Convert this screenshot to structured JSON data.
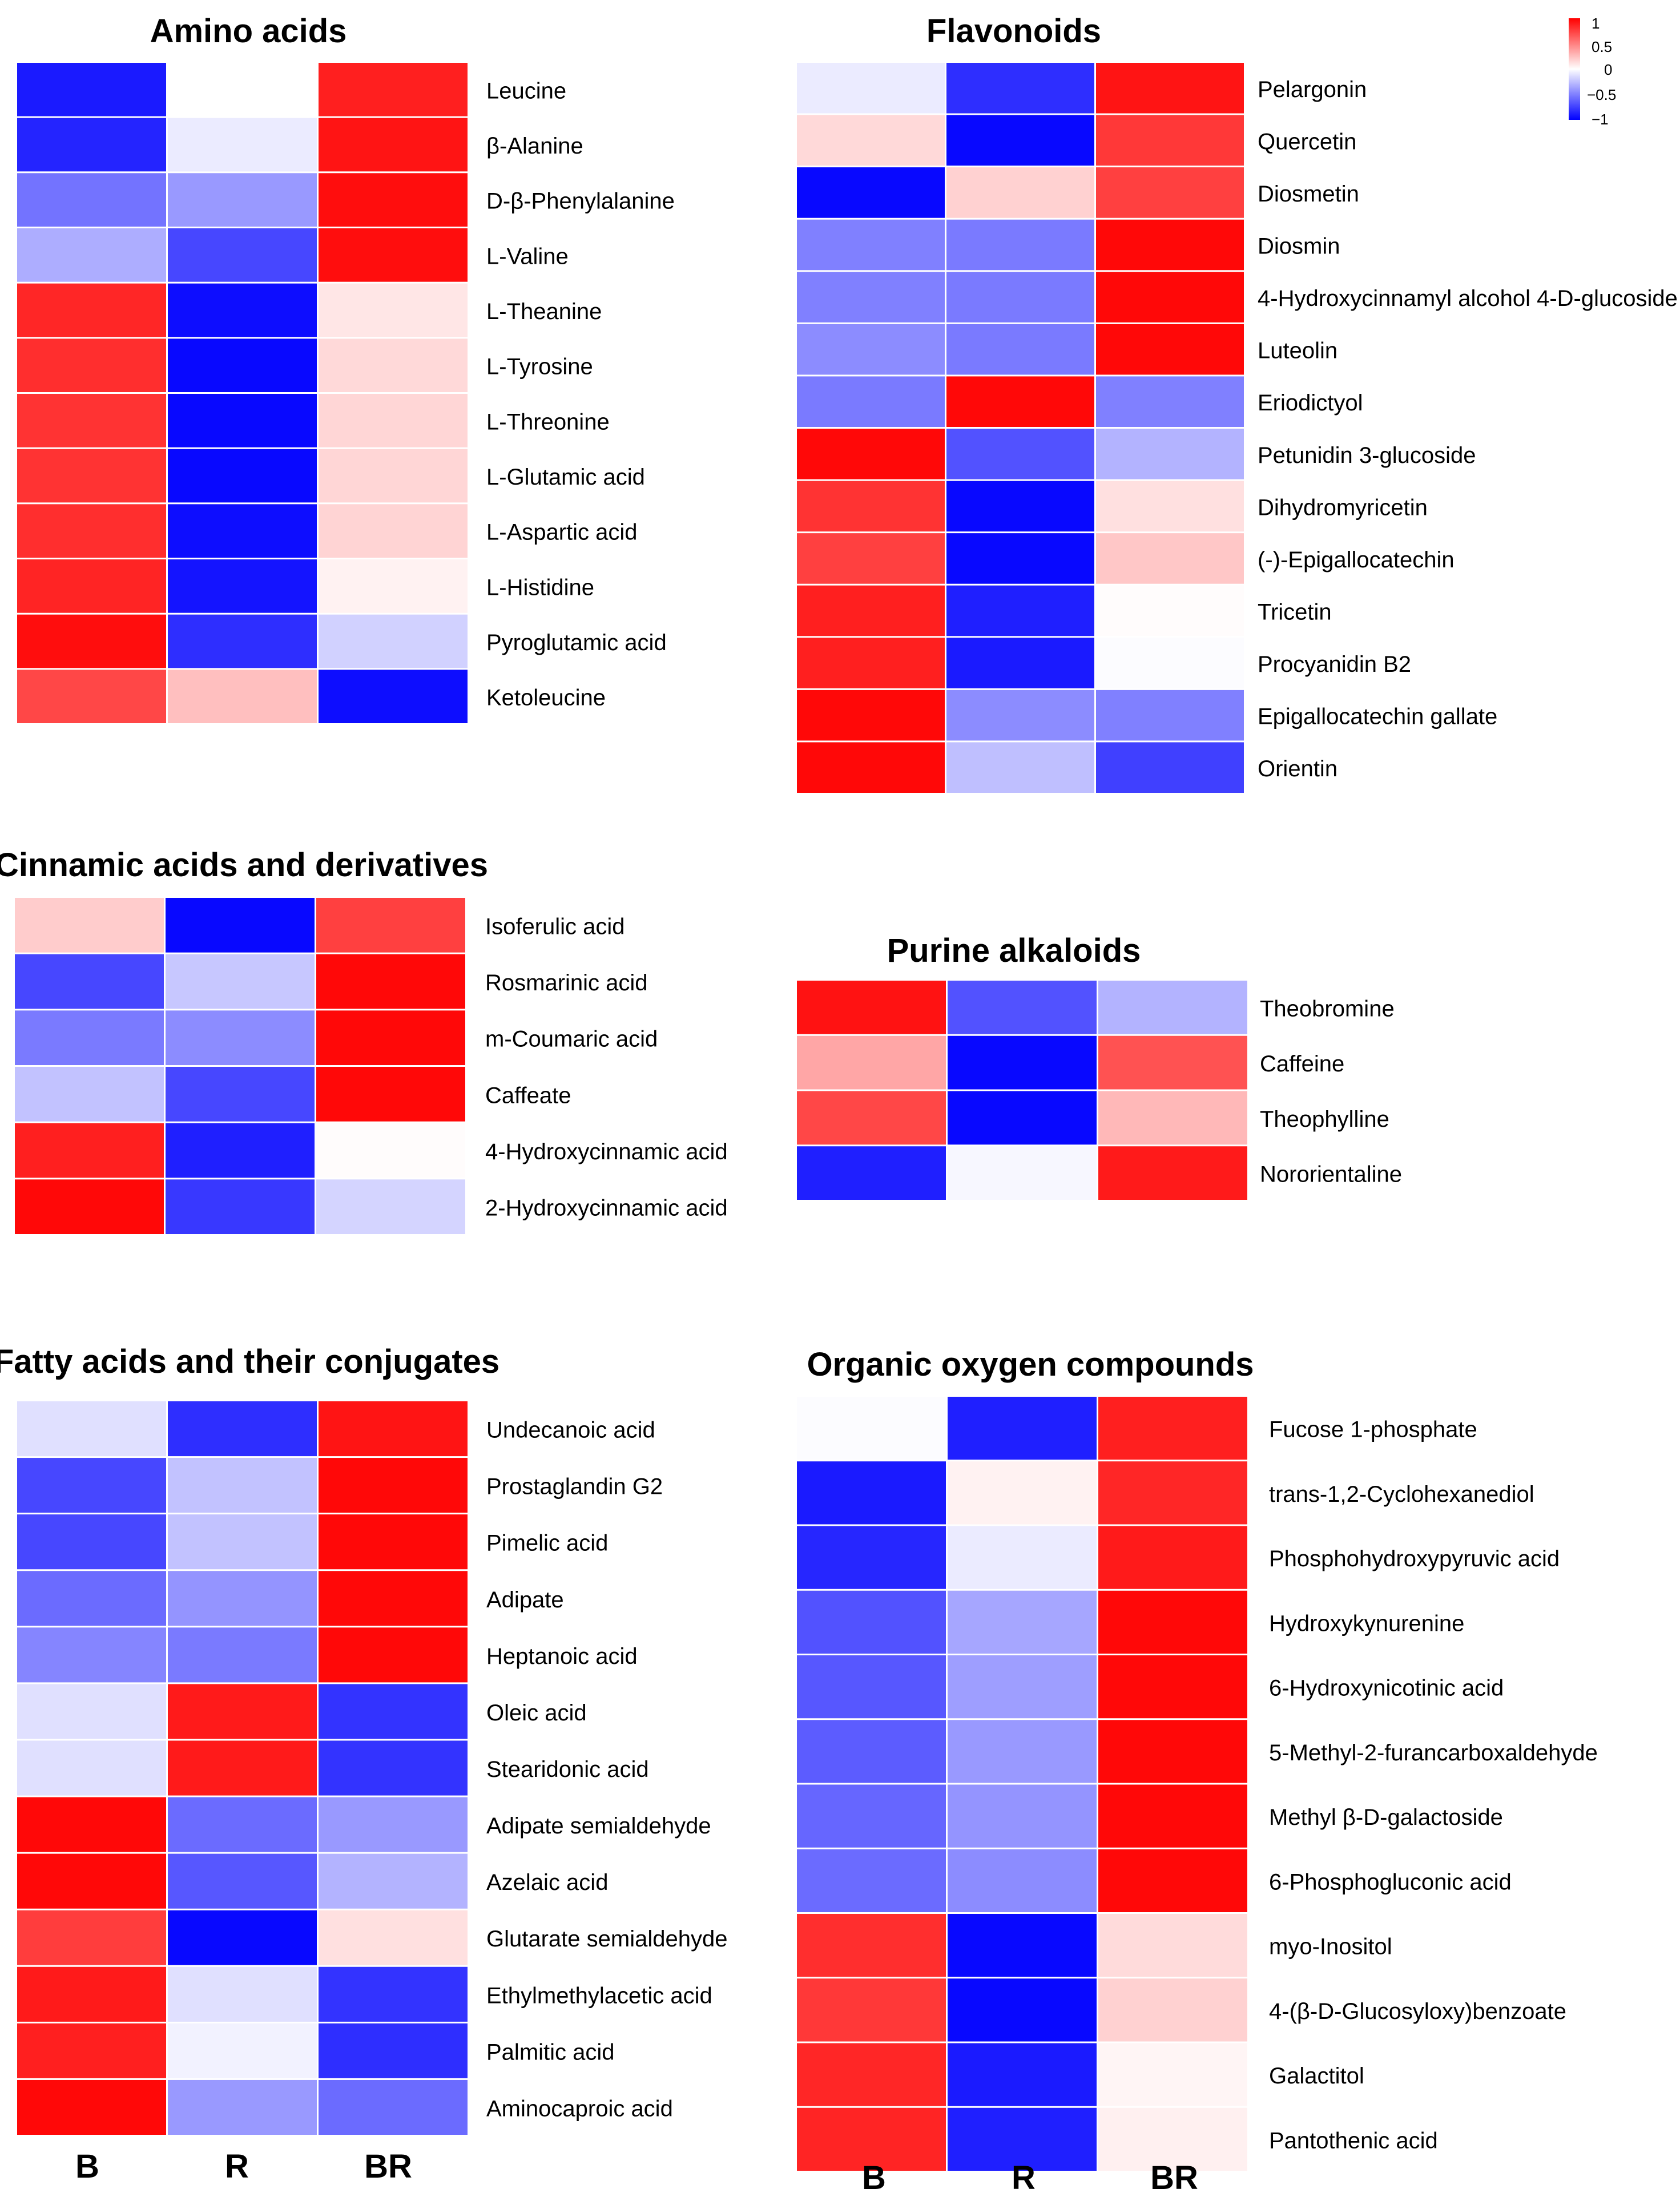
{
  "chart_data": {
    "type": "heatmap",
    "colors": {
      "low": "#0000ff",
      "mid": "#ffffff",
      "high": "#ff0000"
    },
    "legend": {
      "placement": "top-right",
      "range": [
        -1,
        1
      ],
      "ticks": [
        1,
        0.5,
        0,
        -0.5,
        -1
      ],
      "tick_labels": [
        "1",
        "0.5",
        "0",
        "−0.5",
        "−1"
      ]
    },
    "column_labels": [
      "B",
      "R",
      "BR"
    ],
    "panels": [
      {
        "title": "Amino acids",
        "columns": [
          "B",
          "R",
          "BR"
        ],
        "rows": [
          "Leucine",
          "β-Alanine",
          "D-β-Phenylalanine",
          "L-Valine",
          "L-Theanine",
          "L-Tyrosine",
          "L-Threonine",
          "L-Glutamic acid",
          "L-Aspartic acid",
          "L-Histidine",
          "Pyroglutamic acid",
          "Ketoleucine"
        ],
        "values": [
          [
            -0.9,
            0.0,
            0.88
          ],
          [
            -0.86,
            -0.08,
            0.92
          ],
          [
            -0.55,
            -0.4,
            0.95
          ],
          [
            -0.32,
            -0.72,
            0.95
          ],
          [
            0.85,
            -0.95,
            0.1
          ],
          [
            0.82,
            -0.97,
            0.15
          ],
          [
            0.8,
            -0.97,
            0.16
          ],
          [
            0.8,
            -0.97,
            0.16
          ],
          [
            0.82,
            -0.95,
            0.17
          ],
          [
            0.86,
            -0.92,
            0.05
          ],
          [
            0.95,
            -0.82,
            -0.18
          ],
          [
            0.72,
            0.25,
            -0.95
          ]
        ]
      },
      {
        "title": "Flavonoids",
        "columns": [
          "B",
          "R",
          "BR"
        ],
        "rows": [
          "Pelargonin",
          "Quercetin",
          "Diosmetin",
          "Diosmin",
          "4-Hydroxycinnamyl alcohol 4-D-glucoside",
          "Luteolin",
          "Eriodictyol",
          "Petunidin 3-glucoside",
          "Dihydromyricetin",
          "(-)-Epigallocatechin",
          "Tricetin",
          "Procyanidin B2",
          "Epigallocatechin gallate",
          "Orientin"
        ],
        "values": [
          [
            -0.08,
            -0.82,
            0.92
          ],
          [
            0.15,
            -0.97,
            0.78
          ],
          [
            -0.97,
            0.18,
            0.75
          ],
          [
            -0.5,
            -0.52,
            0.97
          ],
          [
            -0.5,
            -0.52,
            0.97
          ],
          [
            -0.45,
            -0.52,
            0.97
          ],
          [
            -0.52,
            0.97,
            -0.5
          ],
          [
            0.97,
            -0.68,
            -0.3
          ],
          [
            0.8,
            -0.97,
            0.12
          ],
          [
            0.75,
            -0.97,
            0.22
          ],
          [
            0.88,
            -0.88,
            0.01
          ],
          [
            0.88,
            -0.9,
            -0.01
          ],
          [
            0.97,
            -0.45,
            -0.5
          ],
          [
            0.97,
            -0.25,
            -0.75
          ]
        ]
      },
      {
        "title": "Cinnamic acids and derivatives",
        "columns": [
          "B",
          "R",
          "BR"
        ],
        "rows": [
          "Isoferulic acid",
          "Rosmarinic acid",
          "m-Coumaric acid",
          "Caffeate",
          "4-Hydroxycinnamic acid",
          "2-Hydroxycinnamic acid"
        ],
        "values": [
          [
            0.2,
            -0.97,
            0.75
          ],
          [
            -0.72,
            -0.22,
            0.97
          ],
          [
            -0.52,
            -0.45,
            0.97
          ],
          [
            -0.24,
            -0.72,
            0.97
          ],
          [
            0.88,
            -0.88,
            0.01
          ],
          [
            0.97,
            -0.78,
            -0.17
          ]
        ]
      },
      {
        "title": "Purine alkaloids",
        "columns": [
          "B",
          "R",
          "BR"
        ],
        "rows": [
          "Theobromine",
          "Caffeine",
          "Theophylline",
          "Nororientaline"
        ],
        "values": [
          [
            0.93,
            -0.68,
            -0.3
          ],
          [
            0.35,
            -0.97,
            0.68
          ],
          [
            0.72,
            -0.97,
            0.28
          ],
          [
            -0.88,
            -0.03,
            0.9
          ]
        ]
      },
      {
        "title": "Fatty acids and their conjugates",
        "columns": [
          "B",
          "R",
          "BR"
        ],
        "rows": [
          "Undecanoic acid",
          "Prostaglandin G2",
          "Pimelic acid",
          "Adipate",
          "Heptanoic acid",
          "Oleic acid",
          "Stearidonic acid",
          "Adipate semialdehyde",
          "Azelaic acid",
          "Glutarate semialdehyde",
          "Ethylmethylacetic acid",
          "Palmitic acid",
          "Aminocaproic acid"
        ],
        "values": [
          [
            -0.12,
            -0.82,
            0.92
          ],
          [
            -0.72,
            -0.24,
            0.97
          ],
          [
            -0.72,
            -0.24,
            0.97
          ],
          [
            -0.58,
            -0.42,
            0.97
          ],
          [
            -0.48,
            -0.52,
            0.97
          ],
          [
            -0.12,
            0.9,
            -0.8
          ],
          [
            -0.12,
            0.9,
            -0.8
          ],
          [
            0.97,
            -0.58,
            -0.4
          ],
          [
            0.97,
            -0.66,
            -0.3
          ],
          [
            0.76,
            -0.97,
            0.12
          ],
          [
            0.9,
            -0.12,
            -0.8
          ],
          [
            0.88,
            -0.05,
            -0.82
          ],
          [
            0.97,
            -0.4,
            -0.58
          ]
        ]
      },
      {
        "title": "Organic oxygen compounds",
        "columns": [
          "B",
          "R",
          "BR"
        ],
        "rows": [
          "Fucose 1-phosphate",
          "trans-1,2-Cyclohexanediol",
          "Phosphohydroxypyruvic acid",
          "Hydroxykynurenine",
          "6-Hydroxynicotinic acid",
          "5-Methyl-2-furancarboxaldehyde",
          "Methyl β-D-galactoside",
          "6-Phosphogluconic acid",
          "myo-Inositol",
          "4-(β-D-Glucosyloxy)benzoate",
          "Galactitol",
          "Pantothenic acid"
        ],
        "values": [
          [
            -0.01,
            -0.88,
            0.88
          ],
          [
            -0.9,
            0.05,
            0.85
          ],
          [
            -0.85,
            -0.08,
            0.9
          ],
          [
            -0.68,
            -0.35,
            0.97
          ],
          [
            -0.66,
            -0.38,
            0.97
          ],
          [
            -0.64,
            -0.4,
            0.97
          ],
          [
            -0.6,
            -0.42,
            0.97
          ],
          [
            -0.58,
            -0.45,
            0.97
          ],
          [
            0.82,
            -0.97,
            0.14
          ],
          [
            0.78,
            -0.97,
            0.18
          ],
          [
            0.85,
            -0.9,
            0.04
          ],
          [
            0.86,
            -0.88,
            0.06
          ]
        ]
      }
    ]
  }
}
